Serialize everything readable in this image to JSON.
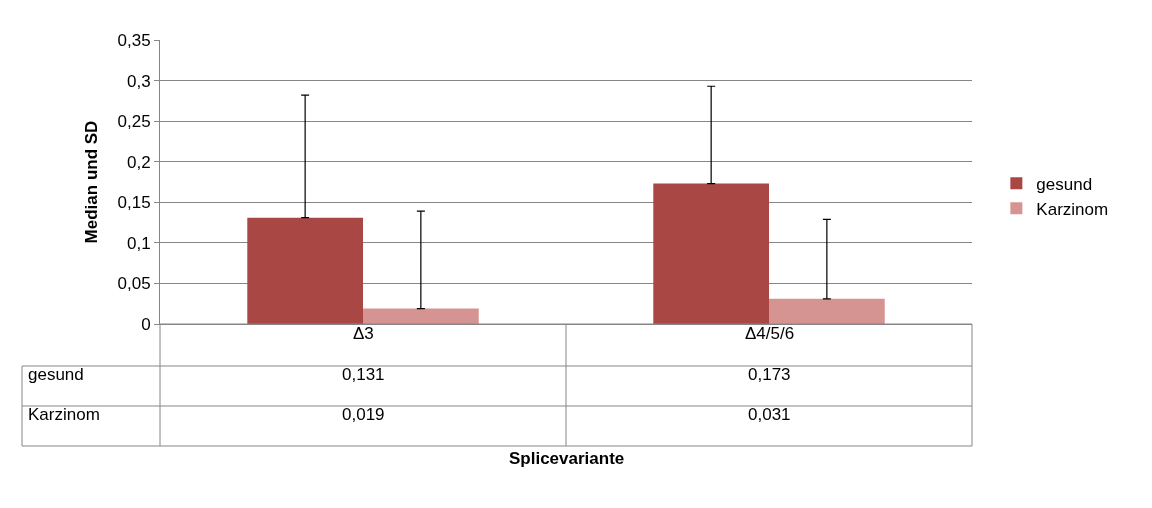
{
  "chart_data": {
    "type": "bar",
    "annotations": [
      "Splicevariante"
    ],
    "ylabel": "Median und SD",
    "categories": [
      "Δ3",
      "Δ4/5/6"
    ],
    "series": [
      {
        "name": "gesund",
        "color": "#a94744",
        "values": [
          0.131,
          0.173
        ],
        "value_labels": [
          "0,131",
          "0,173"
        ],
        "errors": [
          [
            0.131,
            0.282
          ],
          [
            0.173,
            0.293
          ]
        ]
      },
      {
        "name": "Karzinom",
        "color": "#d59392",
        "values": [
          0.019,
          0.031
        ],
        "value_labels": [
          "0,019",
          "0,031"
        ],
        "errors": [
          [
            0.019,
            0.139
          ],
          [
            0.031,
            0.129
          ]
        ]
      }
    ],
    "ylim": [
      0,
      0.35
    ],
    "yticks": [
      0,
      {
        "value": 0.05,
        "label": "0,05"
      },
      {
        "value": 0.1,
        "label": "0,1"
      },
      {
        "value": 0.15,
        "label": "0,15"
      },
      {
        "value": 0.2,
        "label": "0,2"
      },
      {
        "value": 0.25,
        "label": "0,25"
      },
      {
        "value": 0.3,
        "label": "0,3"
      },
      {
        "value": 0.35,
        "label": "0,35"
      }
    ],
    "grid": "y",
    "legend": "right"
  }
}
